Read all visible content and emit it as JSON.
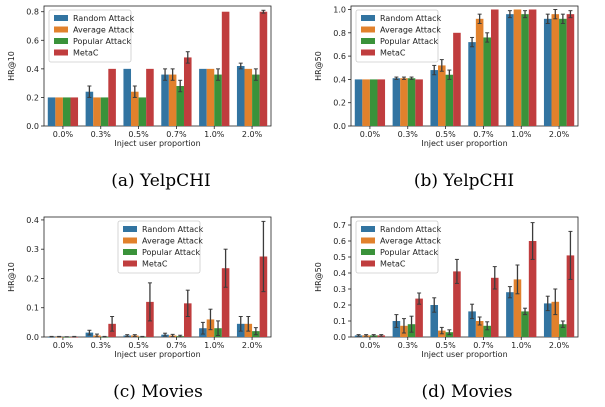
{
  "colors": {
    "random": "#3274a1",
    "average": "#e1812c",
    "popular": "#3a923a",
    "metac": "#c03d3e",
    "error": "#3c3c3c"
  },
  "chart_data": [
    {
      "type": "bar",
      "caption": "(a) YelpCHI",
      "xlabel": "Inject user proportion",
      "ylabel": "HR@10",
      "categories": [
        "0.0%",
        "0.3%",
        "0.5%",
        "0.7%",
        "1.0%",
        "2.0%"
      ],
      "ylim": [
        0,
        0.84
      ],
      "yticks": [
        "0.0",
        "0.2",
        "0.4",
        "0.6",
        "0.8"
      ],
      "ytick_values": [
        0,
        0.2,
        0.4,
        0.6,
        0.8
      ],
      "legend": "top-left",
      "series": [
        {
          "name": "Random Attack",
          "values": [
            0.2,
            0.24,
            0.4,
            0.36,
            0.4,
            0.42
          ],
          "errors": [
            0,
            0.04,
            0,
            0.04,
            0,
            0.02
          ]
        },
        {
          "name": "Average Attack",
          "values": [
            0.2,
            0.2,
            0.24,
            0.36,
            0.4,
            0.4
          ],
          "errors": [
            0,
            0,
            0.04,
            0.04,
            0,
            0
          ]
        },
        {
          "name": "Popular Attack",
          "values": [
            0.2,
            0.2,
            0.2,
            0.28,
            0.36,
            0.36
          ],
          "errors": [
            0,
            0,
            0,
            0.04,
            0.04,
            0.04
          ]
        },
        {
          "name": "MetaC",
          "values": [
            0.2,
            0.4,
            0.4,
            0.48,
            0.8,
            0.8
          ],
          "errors": [
            0,
            0,
            0,
            0.04,
            0,
            0.01
          ]
        }
      ]
    },
    {
      "type": "bar",
      "caption": "(b) YelpCHI",
      "xlabel": "Inject user proportion",
      "ylabel": "HR@50",
      "categories": [
        "0.0%",
        "0.3%",
        "0.5%",
        "0.7%",
        "1.0%",
        "2.0%"
      ],
      "ylim": [
        0,
        1.03
      ],
      "yticks": [
        "0.0",
        "0.2",
        "0.4",
        "0.6",
        "0.8",
        "1.0"
      ],
      "ytick_values": [
        0,
        0.2,
        0.4,
        0.6,
        0.8,
        1.0
      ],
      "legend": "top-left",
      "series": [
        {
          "name": "Random Attack",
          "values": [
            0.4,
            0.41,
            0.48,
            0.72,
            0.96,
            0.92
          ],
          "errors": [
            0,
            0.01,
            0.04,
            0.04,
            0.03,
            0.04
          ]
        },
        {
          "name": "Average Attack",
          "values": [
            0.4,
            0.41,
            0.52,
            0.92,
            1.0,
            0.96
          ],
          "errors": [
            0,
            0.01,
            0.05,
            0.04,
            0,
            0.04
          ]
        },
        {
          "name": "Popular Attack",
          "values": [
            0.4,
            0.41,
            0.44,
            0.76,
            0.96,
            0.92
          ],
          "errors": [
            0,
            0.01,
            0.04,
            0.04,
            0.03,
            0.04
          ]
        },
        {
          "name": "MetaC",
          "values": [
            0.4,
            0.4,
            0.8,
            1.0,
            1.0,
            0.96
          ],
          "errors": [
            0,
            0,
            0,
            0,
            0,
            0.03
          ]
        }
      ]
    },
    {
      "type": "bar",
      "caption": "(c) Movies",
      "xlabel": "Inject user proportion",
      "ylabel": "HR@10",
      "categories": [
        "0.0%",
        "0.3%",
        "0.5%",
        "0.7%",
        "1.0%",
        "2.0%"
      ],
      "ylim": [
        0,
        0.41
      ],
      "yticks": [
        "0.0",
        "0.1",
        "0.2",
        "0.3",
        "0.4"
      ],
      "ytick_values": [
        0,
        0.1,
        0.2,
        0.3,
        0.4
      ],
      "legend": "top-right",
      "series": [
        {
          "name": "Random Attack",
          "values": [
            0.0,
            0.015,
            0.005,
            0.008,
            0.03,
            0.045
          ],
          "errors": [
            0.002,
            0.008,
            0.003,
            0.005,
            0.02,
            0.025
          ]
        },
        {
          "name": "Average Attack",
          "values": [
            0.0,
            0.005,
            0.005,
            0.005,
            0.06,
            0.045
          ],
          "errors": [
            0.002,
            0.005,
            0.003,
            0.004,
            0.035,
            0.025
          ]
        },
        {
          "name": "Popular Attack",
          "values": [
            0.0,
            0.0,
            0.0,
            0.003,
            0.03,
            0.02
          ],
          "errors": [
            0.001,
            0.002,
            0.002,
            0.003,
            0.025,
            0.012
          ]
        },
        {
          "name": "MetaC",
          "values": [
            0.0,
            0.045,
            0.12,
            0.115,
            0.235,
            0.275
          ],
          "errors": [
            0.002,
            0.025,
            0.065,
            0.045,
            0.065,
            0.12
          ]
        }
      ]
    },
    {
      "type": "bar",
      "caption": "(d) Movies",
      "xlabel": "Inject user proportion",
      "ylabel": "HR@50",
      "categories": [
        "0.0%",
        "0.3%",
        "0.5%",
        "0.7%",
        "1.0%",
        "2.0%"
      ],
      "ylim": [
        0,
        0.75
      ],
      "yticks": [
        "0.0",
        "0.1",
        "0.2",
        "0.3",
        "0.4",
        "0.5",
        "0.6",
        "0.7"
      ],
      "ytick_values": [
        0,
        0.1,
        0.2,
        0.3,
        0.4,
        0.5,
        0.6,
        0.7
      ],
      "legend": "top-left",
      "series": [
        {
          "name": "Random Attack",
          "values": [
            0.01,
            0.1,
            0.2,
            0.16,
            0.28,
            0.21
          ],
          "errors": [
            0.005,
            0.04,
            0.045,
            0.045,
            0.035,
            0.045
          ]
        },
        {
          "name": "Average Attack",
          "values": [
            0.01,
            0.07,
            0.04,
            0.1,
            0.36,
            0.22
          ],
          "errors": [
            0.005,
            0.045,
            0.02,
            0.025,
            0.09,
            0.08
          ]
        },
        {
          "name": "Popular Attack",
          "values": [
            0.01,
            0.08,
            0.03,
            0.07,
            0.16,
            0.08
          ],
          "errors": [
            0.005,
            0.05,
            0.015,
            0.025,
            0.02,
            0.02
          ]
        },
        {
          "name": "MetaC",
          "values": [
            0.01,
            0.24,
            0.41,
            0.37,
            0.6,
            0.51
          ],
          "errors": [
            0.005,
            0.035,
            0.075,
            0.07,
            0.115,
            0.15
          ]
        }
      ]
    }
  ]
}
